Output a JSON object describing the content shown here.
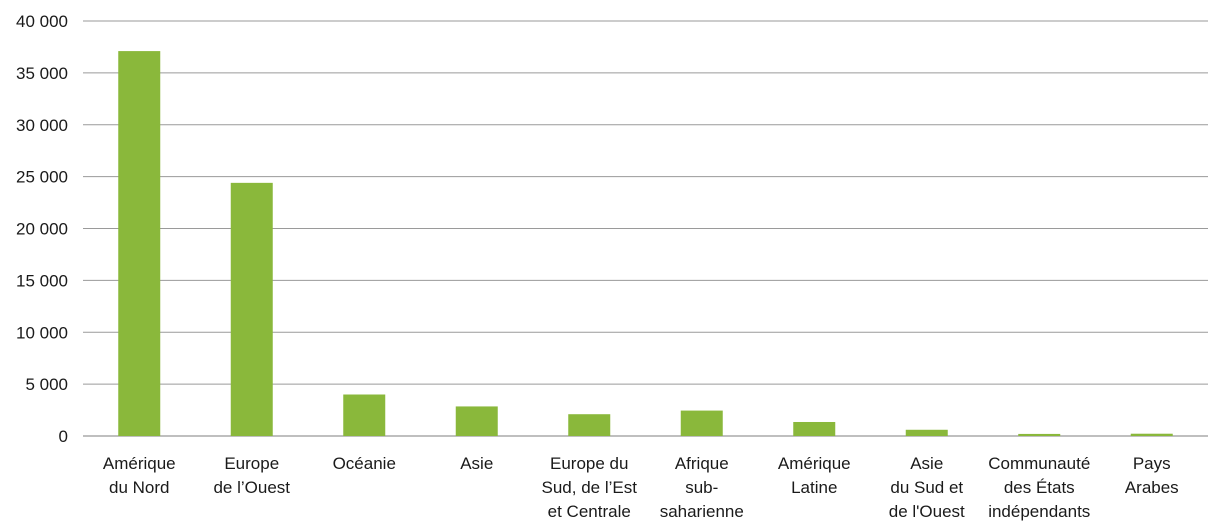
{
  "chart_data": {
    "type": "bar",
    "title": "",
    "xlabel": "",
    "ylabel": "",
    "categories": [
      [
        "Amérique",
        "du Nord"
      ],
      [
        "Europe",
        "de l’Ouest"
      ],
      [
        "Océanie"
      ],
      [
        "Asie"
      ],
      [
        "Europe du",
        "Sud, de l’Est",
        "et Centrale"
      ],
      [
        "Afrique",
        "sub-",
        "saharienne"
      ],
      [
        "Amérique",
        "Latine"
      ],
      [
        "Asie",
        "du Sud et",
        "de l'Ouest"
      ],
      [
        "Communauté",
        "des États",
        "indépendants"
      ],
      [
        "Pays",
        "Arabes"
      ]
    ],
    "values": [
      37100,
      24400,
      4000,
      2850,
      2100,
      2450,
      1350,
      600,
      200,
      220
    ],
    "ylim": [
      0,
      40000
    ],
    "yticks": [
      0,
      5000,
      10000,
      15000,
      20000,
      25000,
      30000,
      35000,
      40000
    ],
    "ytick_labels": [
      "0",
      "5 000",
      "10 000",
      "15 000",
      "20 000",
      "25 000",
      "30 000",
      "35 000",
      "40 000"
    ],
    "grid": true,
    "legend": "none",
    "colors": {
      "bar": "#8ab83b",
      "gridline": "#9a9a9a",
      "axis": "#7f7f7f",
      "text": "#1a1a1a"
    }
  }
}
